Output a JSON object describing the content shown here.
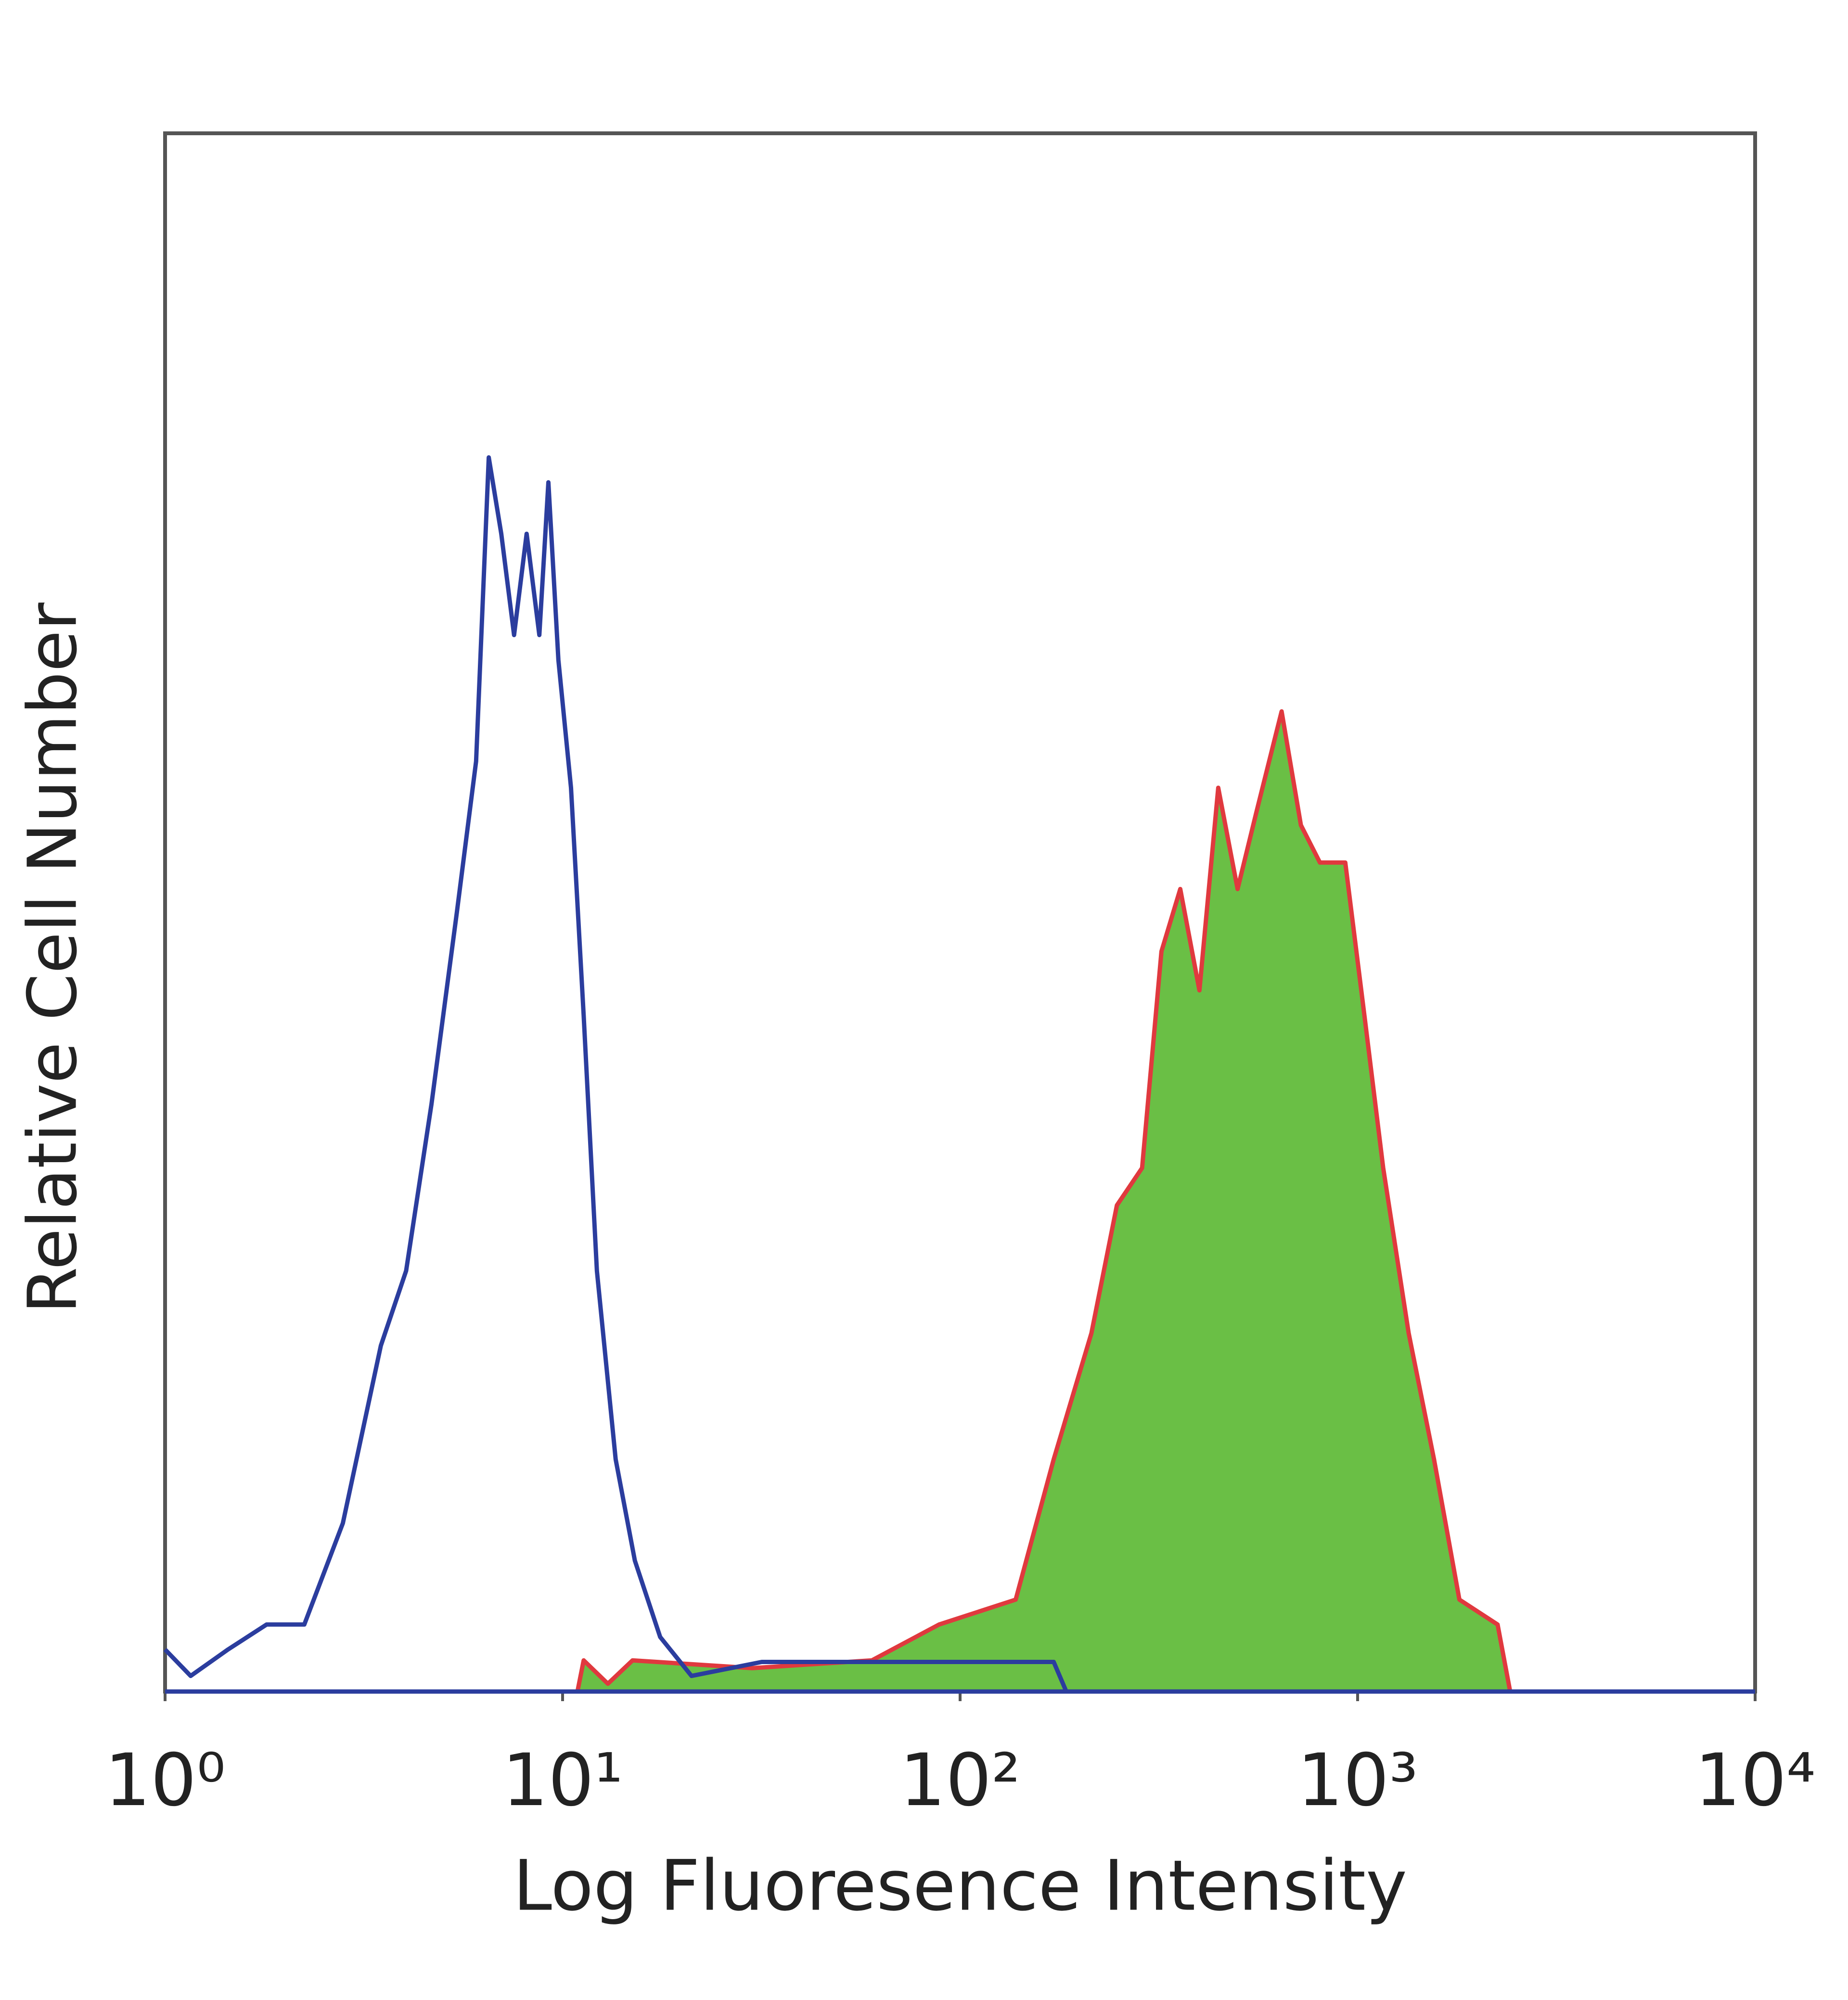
{
  "chart_data": {
    "type": "histogram-overlay",
    "xlabel": "Log Fluoresence Intensity",
    "ylabel": "Relative Cell Number",
    "xscale": "log",
    "xlim": [
      1,
      10000
    ],
    "ylim": [
      0,
      100
    ],
    "xticks": [
      {
        "value": 1,
        "label": "10⁰"
      },
      {
        "value": 10,
        "label": "10¹"
      },
      {
        "value": 100,
        "label": "10²"
      },
      {
        "value": 1000,
        "label": "10³"
      },
      {
        "value": 10000,
        "label": "10⁴"
      }
    ],
    "series": [
      {
        "color": "#6abf45",
        "edge_color": "#e0393e",
        "filled": true,
        "x": [
          1,
          10.9,
          11.3,
          13,
          15,
          30,
          60,
          88.5,
          138,
          172,
          214,
          248,
          287,
          321,
          358,
          400,
          446,
          499,
          556,
          644,
          720,
          804,
          931,
          1040,
          1160,
          1344,
          1557,
          1803,
          2250,
          2420,
          10000
        ],
        "values": [
          0,
          0,
          2,
          0.5,
          2,
          1.5,
          2,
          4.3,
          5.9,
          14.9,
          23,
          31.2,
          33.6,
          47.5,
          51.5,
          45,
          58,
          51.5,
          56.4,
          62.9,
          55.6,
          53.2,
          53.2,
          43.4,
          33.6,
          23,
          14.9,
          5.9,
          4.3,
          0,
          0
        ]
      },
      {
        "color": "#2b3d9e",
        "filled": false,
        "x": [
          1,
          1.16,
          1.44,
          1.8,
          2.24,
          2.8,
          3.49,
          4.04,
          4.68,
          5.42,
          6.06,
          6.52,
          7.01,
          7.55,
          8.12,
          8.74,
          9.21,
          9.76,
          10.5,
          11.3,
          12.2,
          13.6,
          15.2,
          17.6,
          21.1,
          31.7,
          66,
          172,
          185,
          10000
        ],
        "values": [
          2.7,
          1,
          2.7,
          4.3,
          4.3,
          10.8,
          22.2,
          27,
          37.7,
          50,
          59.7,
          79.2,
          74.3,
          67.8,
          74.3,
          67.8,
          77.6,
          66.2,
          58,
          43.4,
          27,
          14.9,
          8.4,
          3.5,
          1,
          1.9,
          1.9,
          1.9,
          0,
          0
        ]
      }
    ]
  }
}
